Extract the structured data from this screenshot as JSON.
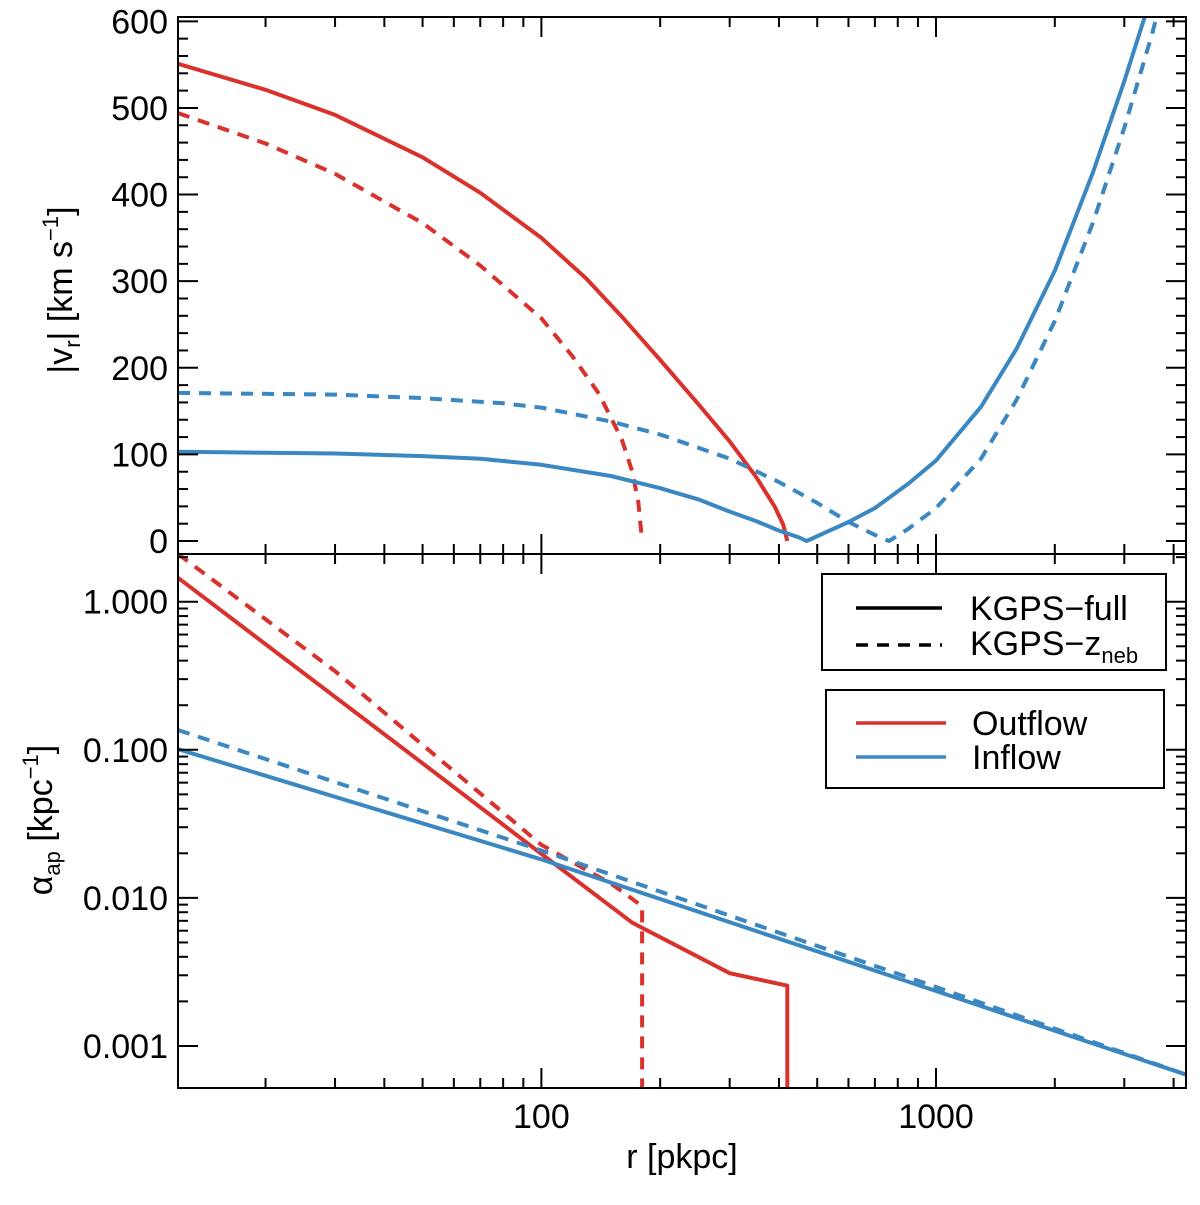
{
  "colors": {
    "outflow": "#d9312b",
    "inflow": "#3a87c2",
    "axis": "#000000"
  },
  "chart_data": [
    {
      "panel": "top",
      "type": "line",
      "xlabel": "r [pkpc]",
      "ylabel": {
        "prefix": "|v",
        "sub": "r",
        "suffix": "| [km s",
        "sup": "−1",
        "end": "]"
      },
      "xscale": "log",
      "xlim": [
        12,
        4300
      ],
      "ylim": [
        -15,
        605
      ],
      "yticks": [
        0,
        100,
        200,
        300,
        400,
        500,
        600
      ],
      "ytick_labels": [
        "0",
        "100",
        "200",
        "300",
        "400",
        "500",
        "600"
      ],
      "series": [
        {
          "flow": "outflow",
          "dataset": "KGPS-full",
          "style": "solid",
          "points": [
            [
              12,
              551
            ],
            [
              20,
              521
            ],
            [
              30,
              492
            ],
            [
              50,
              443
            ],
            [
              70,
              402
            ],
            [
              100,
              350
            ],
            [
              130,
              303
            ],
            [
              160,
              259
            ],
            [
              200,
              209
            ],
            [
              250,
              158
            ],
            [
              300,
              115
            ],
            [
              350,
              74
            ],
            [
              390,
              40
            ],
            [
              410,
              19
            ],
            [
              420,
              0
            ]
          ]
        },
        {
          "flow": "outflow",
          "dataset": "KGPS-zneb",
          "style": "dashed",
          "points": [
            [
              12,
              494
            ],
            [
              20,
              459
            ],
            [
              30,
              424
            ],
            [
              50,
              367
            ],
            [
              70,
              318
            ],
            [
              100,
              257
            ],
            [
              120,
              213
            ],
            [
              140,
              170
            ],
            [
              160,
              117
            ],
            [
              170,
              80
            ],
            [
              176,
              45
            ],
            [
              180,
              0
            ]
          ]
        },
        {
          "flow": "inflow",
          "dataset": "KGPS-full",
          "style": "solid",
          "points": [
            [
              12,
              103
            ],
            [
              30,
              101
            ],
            [
              50,
              98
            ],
            [
              70,
              95
            ],
            [
              100,
              88
            ],
            [
              150,
              75
            ],
            [
              200,
              61
            ],
            [
              250,
              48
            ],
            [
              300,
              34
            ],
            [
              350,
              23
            ],
            [
              400,
              12
            ],
            [
              450,
              4
            ],
            [
              470,
              0
            ],
            [
              520,
              9
            ],
            [
              600,
              22
            ],
            [
              700,
              38
            ],
            [
              850,
              66
            ],
            [
              1000,
              93
            ],
            [
              1300,
              155
            ],
            [
              1600,
              222
            ],
            [
              2000,
              312
            ],
            [
              2500,
              426
            ],
            [
              3000,
              531
            ],
            [
              3400,
              609
            ]
          ]
        },
        {
          "flow": "inflow",
          "dataset": "KGPS-zneb",
          "style": "dashed",
          "points": [
            [
              12,
              171
            ],
            [
              30,
              169
            ],
            [
              50,
              165
            ],
            [
              80,
              159
            ],
            [
              100,
              154
            ],
            [
              150,
              138
            ],
            [
              200,
              123
            ],
            [
              300,
              95
            ],
            [
              400,
              68
            ],
            [
              500,
              44
            ],
            [
              600,
              22
            ],
            [
              700,
              7
            ],
            [
              760,
              0
            ],
            [
              850,
              14
            ],
            [
              1000,
              38
            ],
            [
              1300,
              95
            ],
            [
              1600,
              163
            ],
            [
              2000,
              254
            ],
            [
              2500,
              368
            ],
            [
              3000,
              477
            ],
            [
              3500,
              580
            ],
            [
              3700,
              620
            ]
          ]
        }
      ]
    },
    {
      "panel": "bottom",
      "type": "line",
      "xlabel": "r [pkpc]",
      "ylabel": {
        "prefix": "α",
        "sub": "ap",
        "suffix": " [kpc",
        "sup": "−1",
        "end": "]"
      },
      "xscale": "log",
      "yscale": "log",
      "xlim": [
        12,
        4300
      ],
      "ylim": [
        0.00052,
        2.1
      ],
      "xticks": [
        100,
        1000
      ],
      "xtick_labels": [
        "100",
        "1000"
      ],
      "yticks": [
        0.001,
        0.01,
        0.1,
        1.0
      ],
      "ytick_labels": [
        "0.001",
        "0.010",
        "0.100",
        "1.000"
      ],
      "series": [
        {
          "flow": "outflow",
          "dataset": "KGPS-full",
          "style": "solid",
          "points": [
            [
              12,
              1.45
            ],
            [
              50,
              0.081
            ],
            [
              100,
              0.0198
            ],
            [
              170,
              0.0068
            ],
            [
              300,
              0.0031
            ],
            [
              420,
              0.00255
            ],
            [
              420,
              0.00052
            ]
          ]
        },
        {
          "flow": "outflow",
          "dataset": "KGPS-zneb",
          "style": "dashed",
          "points": [
            [
              12,
              2.1
            ],
            [
              30,
              0.34
            ],
            [
              100,
              0.0228
            ],
            [
              150,
              0.0125
            ],
            [
              180,
              0.0088
            ],
            [
              180,
              0.00052
            ]
          ]
        },
        {
          "flow": "inflow",
          "dataset": "KGPS-full",
          "style": "solid",
          "points": [
            [
              12,
              0.101
            ],
            [
              100,
              0.0182
            ],
            [
              1000,
              0.00235
            ],
            [
              4300,
              0.00064
            ]
          ]
        },
        {
          "flow": "inflow",
          "dataset": "KGPS-zneb",
          "style": "dashed",
          "points": [
            [
              12,
              0.136
            ],
            [
              100,
              0.0209
            ],
            [
              1000,
              0.0025
            ],
            [
              4300,
              0.00064
            ]
          ]
        }
      ]
    }
  ],
  "legend_linestyle": [
    {
      "style": "solid",
      "label": "KGPS−full"
    },
    {
      "style": "dashed",
      "label_main": "KGPS−z",
      "label_sub": "neb"
    }
  ],
  "legend_flow": [
    {
      "flow": "outflow",
      "label": "Outflow"
    },
    {
      "flow": "inflow",
      "label": "Inflow"
    }
  ]
}
